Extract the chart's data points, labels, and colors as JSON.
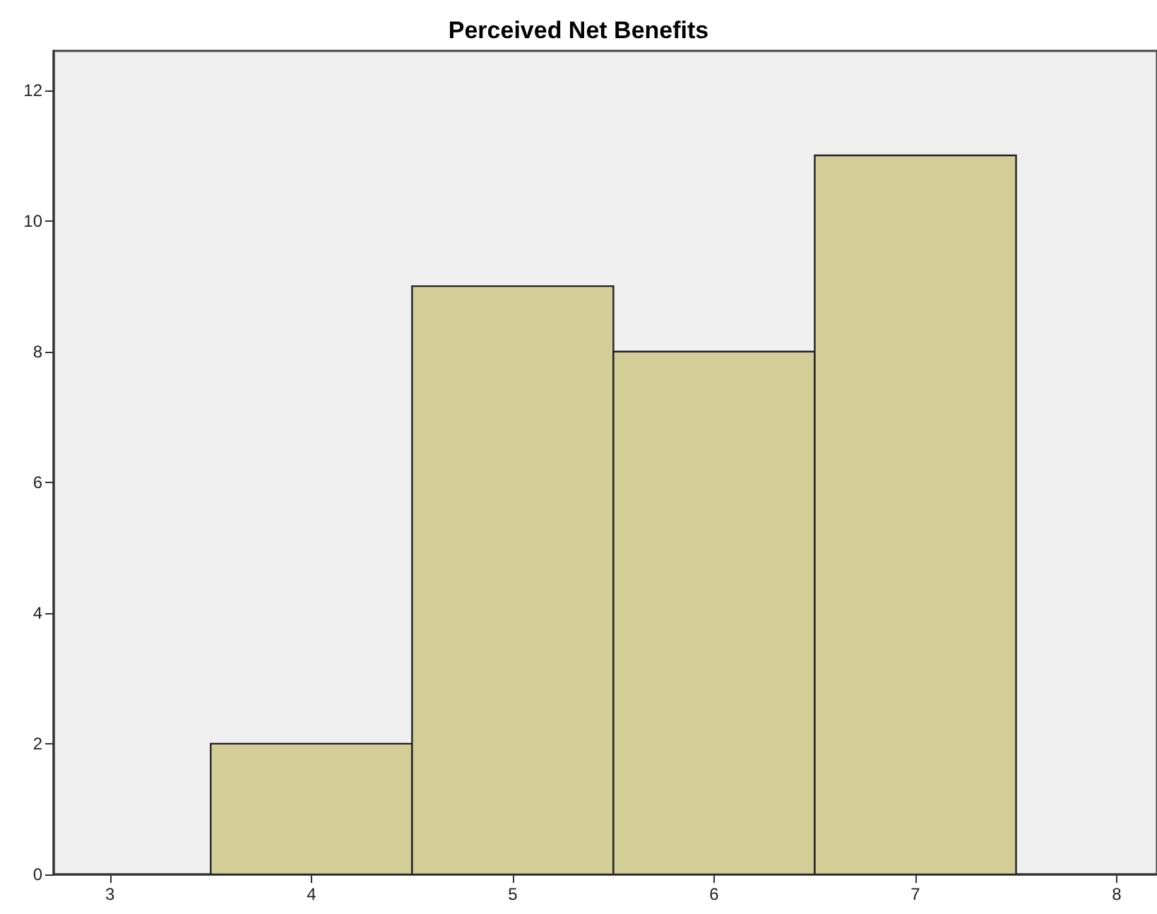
{
  "chart_data": {
    "type": "histogram",
    "title": "Perceived Net Benefits",
    "bins": [
      3.5,
      4.5,
      5.5,
      6.5,
      7.5
    ],
    "values": [
      2,
      9,
      8,
      11
    ],
    "color": "#d3ce98",
    "xlim": [
      2.72,
      8.2
    ],
    "xticks": [
      3,
      4,
      5,
      6,
      7,
      8
    ],
    "ylim": [
      0,
      12.6
    ],
    "yticks": [
      0,
      2,
      4,
      6,
      8,
      10,
      12
    ],
    "grid": false
  }
}
